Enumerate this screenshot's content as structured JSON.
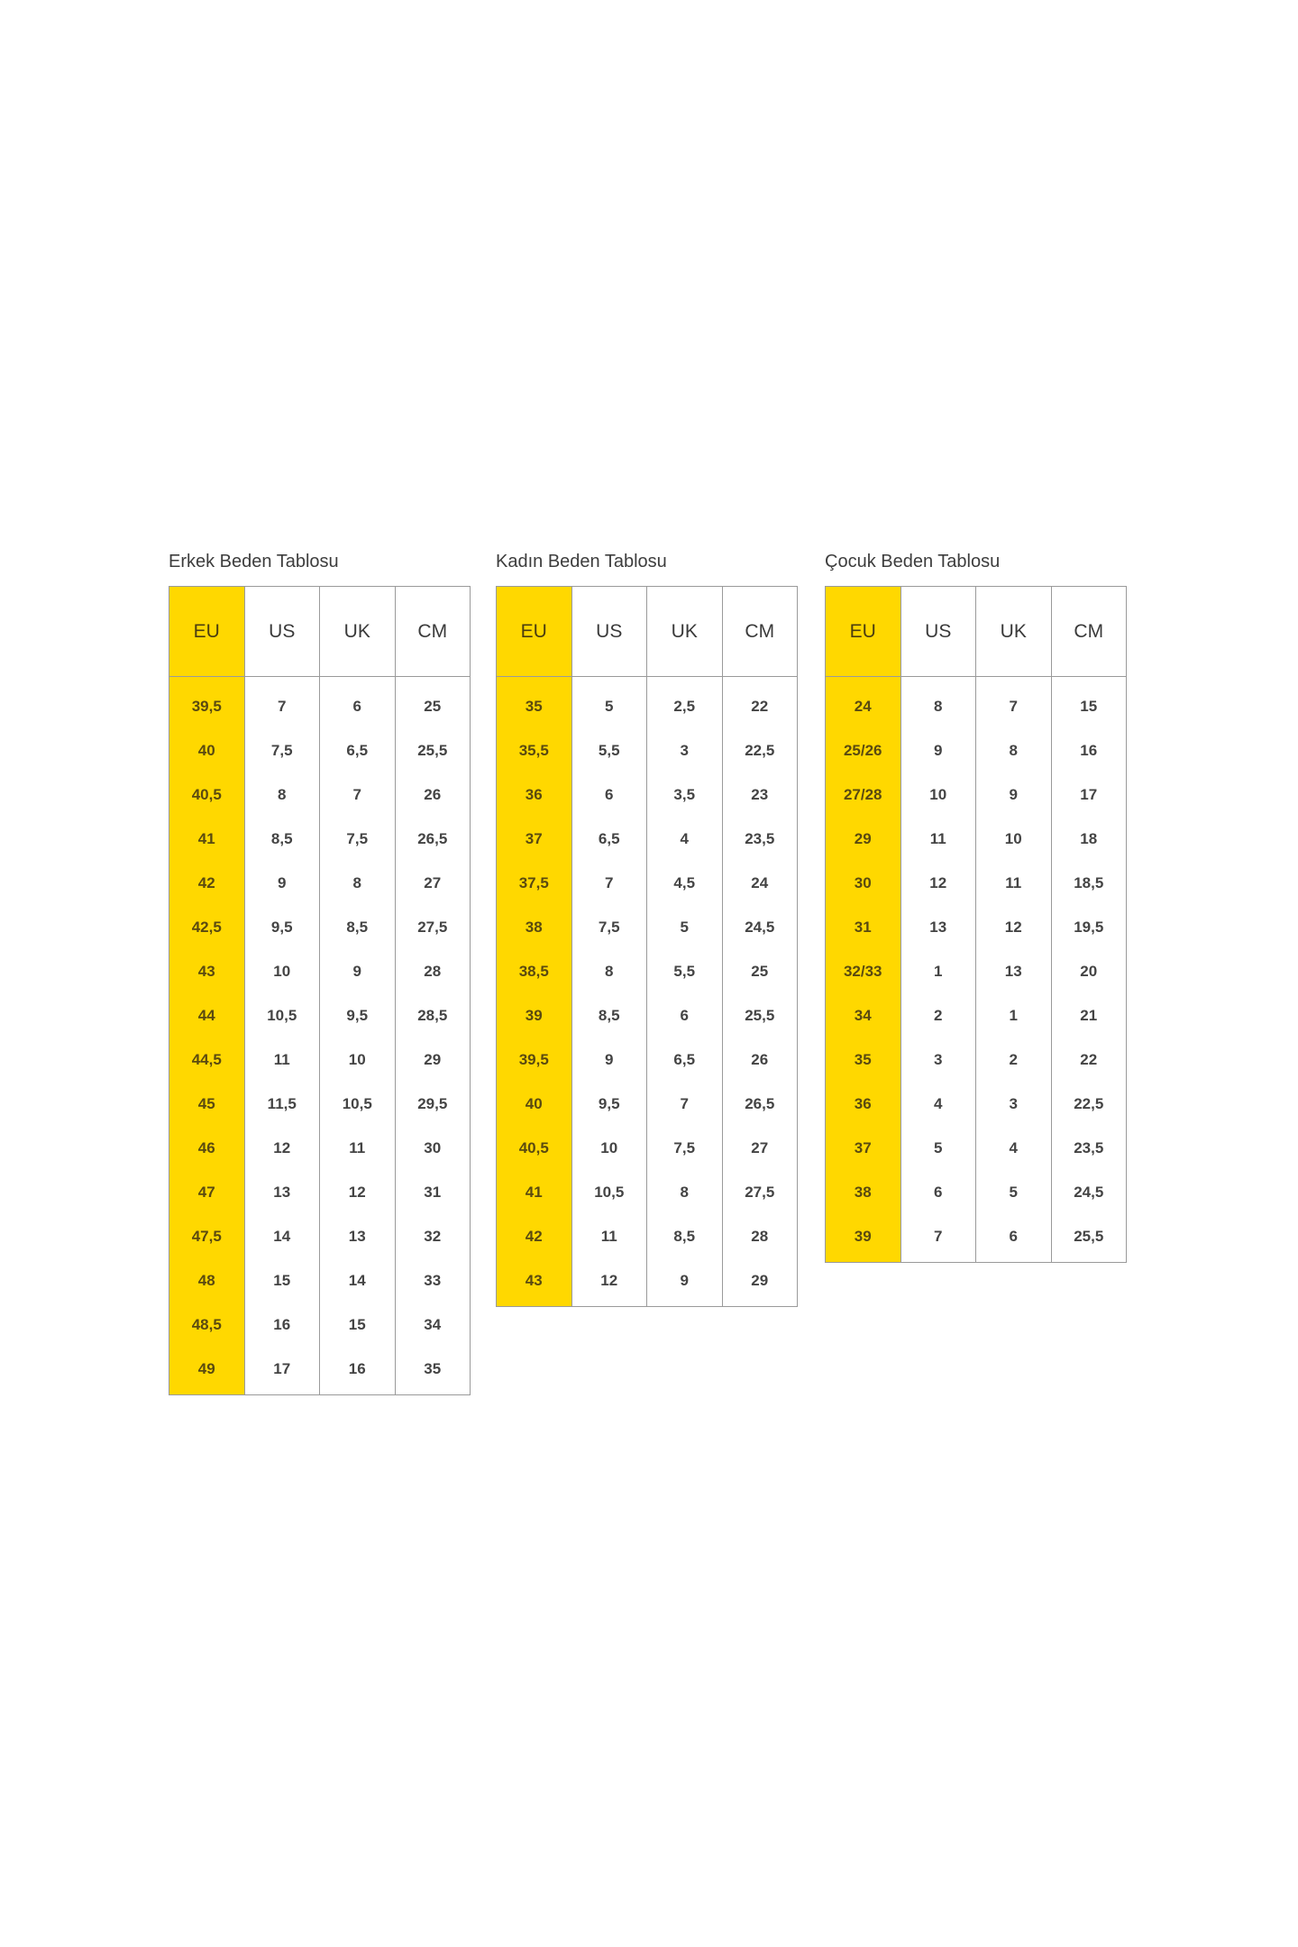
{
  "accent_color": "#ffd800",
  "columns": [
    "EU",
    "US",
    "UK",
    "CM"
  ],
  "tables": [
    {
      "title": "Erkek Beden Tablosu",
      "rows": [
        [
          "39,5",
          "7",
          "6",
          "25"
        ],
        [
          "40",
          "7,5",
          "6,5",
          "25,5"
        ],
        [
          "40,5",
          "8",
          "7",
          "26"
        ],
        [
          "41",
          "8,5",
          "7,5",
          "26,5"
        ],
        [
          "42",
          "9",
          "8",
          "27"
        ],
        [
          "42,5",
          "9,5",
          "8,5",
          "27,5"
        ],
        [
          "43",
          "10",
          "9",
          "28"
        ],
        [
          "44",
          "10,5",
          "9,5",
          "28,5"
        ],
        [
          "44,5",
          "11",
          "10",
          "29"
        ],
        [
          "45",
          "11,5",
          "10,5",
          "29,5"
        ],
        [
          "46",
          "12",
          "11",
          "30"
        ],
        [
          "47",
          "13",
          "12",
          "31"
        ],
        [
          "47,5",
          "14",
          "13",
          "32"
        ],
        [
          "48",
          "15",
          "14",
          "33"
        ],
        [
          "48,5",
          "16",
          "15",
          "34"
        ],
        [
          "49",
          "17",
          "16",
          "35"
        ]
      ]
    },
    {
      "title": "Kadın Beden Tablosu",
      "rows": [
        [
          "35",
          "5",
          "2,5",
          "22"
        ],
        [
          "35,5",
          "5,5",
          "3",
          "22,5"
        ],
        [
          "36",
          "6",
          "3,5",
          "23"
        ],
        [
          "37",
          "6,5",
          "4",
          "23,5"
        ],
        [
          "37,5",
          "7",
          "4,5",
          "24"
        ],
        [
          "38",
          "7,5",
          "5",
          "24,5"
        ],
        [
          "38,5",
          "8",
          "5,5",
          "25"
        ],
        [
          "39",
          "8,5",
          "6",
          "25,5"
        ],
        [
          "39,5",
          "9",
          "6,5",
          "26"
        ],
        [
          "40",
          "9,5",
          "7",
          "26,5"
        ],
        [
          "40,5",
          "10",
          "7,5",
          "27"
        ],
        [
          "41",
          "10,5",
          "8",
          "27,5"
        ],
        [
          "42",
          "11",
          "8,5",
          "28"
        ],
        [
          "43",
          "12",
          "9",
          "29"
        ]
      ]
    },
    {
      "title": "Çocuk Beden Tablosu",
      "rows": [
        [
          "24",
          "8",
          "7",
          "15"
        ],
        [
          "25/26",
          "9",
          "8",
          "16"
        ],
        [
          "27/28",
          "10",
          "9",
          "17"
        ],
        [
          "29",
          "11",
          "10",
          "18"
        ],
        [
          "30",
          "12",
          "11",
          "18,5"
        ],
        [
          "31",
          "13",
          "12",
          "19,5"
        ],
        [
          "32/33",
          "1",
          "13",
          "20"
        ],
        [
          "34",
          "2",
          "1",
          "21"
        ],
        [
          "35",
          "3",
          "2",
          "22"
        ],
        [
          "36",
          "4",
          "3",
          "22,5"
        ],
        [
          "37",
          "5",
          "4",
          "23,5"
        ],
        [
          "38",
          "6",
          "5",
          "24,5"
        ],
        [
          "39",
          "7",
          "6",
          "25,5"
        ]
      ]
    }
  ]
}
